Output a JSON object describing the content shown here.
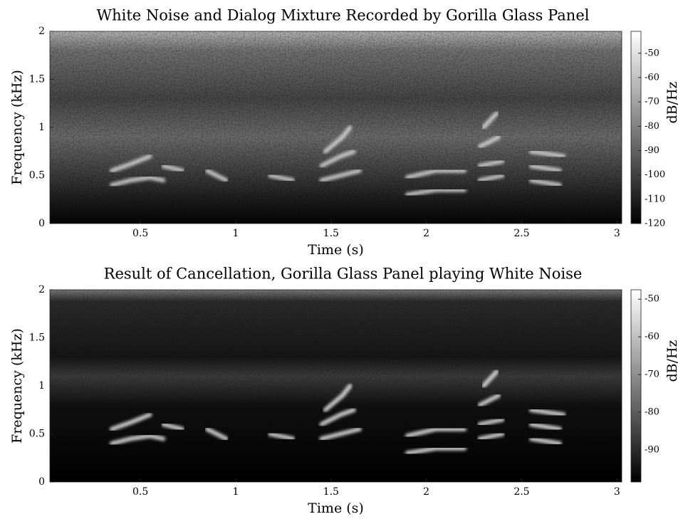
{
  "chart_data": [
    {
      "type": "spectrogram",
      "title": "White Noise and Dialog Mixture Recorded by Gorilla Glass Panel",
      "x_label": "Time (s)",
      "y_label": "Frequency (kHz)",
      "xlim": [
        0.025,
        3.025
      ],
      "xticks": [
        0.5,
        1,
        1.5,
        2,
        2.5,
        3
      ],
      "ylim": [
        0,
        2
      ],
      "yticks": [
        0,
        0.5,
        1,
        1.5,
        2
      ],
      "colorbar_label": "dB/Hz",
      "clim": [
        -120,
        -41
      ],
      "cticks": [
        -120,
        -110,
        -100,
        -90,
        -80,
        -70,
        -60,
        -50
      ],
      "colormap": [
        "#000000",
        "#ffffff"
      ]
    },
    {
      "type": "spectrogram",
      "title": "Result of Cancellation, Gorilla Glass Panel playing White Noise",
      "x_label": "Time (s)",
      "y_label": "Frequency (kHz)",
      "xlim": [
        0.025,
        3.025
      ],
      "xticks": [
        0.5,
        1,
        1.5,
        2,
        2.5,
        3
      ],
      "ylim": [
        0,
        2
      ],
      "yticks": [
        0,
        0.5,
        1,
        1.5,
        2
      ],
      "colorbar_label": "dB/Hz",
      "clim": [
        -98.5,
        -47.5
      ],
      "cticks": [
        -90,
        -80,
        -70,
        -60,
        -50
      ],
      "colormap": [
        "#000000",
        "#ffffff"
      ]
    }
  ]
}
